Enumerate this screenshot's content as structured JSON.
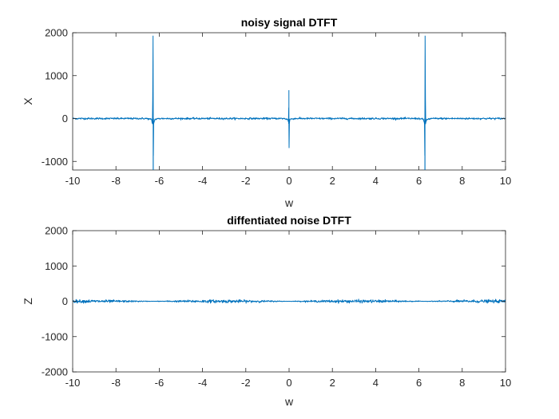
{
  "chart_data": [
    {
      "type": "line",
      "title": "noisy signal DTFT",
      "xlabel": "w",
      "ylabel": "X",
      "xlim": [
        -10,
        10
      ],
      "ylim": [
        -1200,
        2000
      ],
      "xticks": [
        "-10",
        "-8",
        "-6",
        "-4",
        "-2",
        "0",
        "2",
        "4",
        "6",
        "8",
        "10"
      ],
      "yticks": [
        "-1000",
        "0",
        "1000",
        "2000"
      ],
      "grid": false,
      "color": "#0072BD",
      "noise_amplitude": 20,
      "series": [
        {
          "x": [
            -10,
            -6.6,
            -6.36,
            -6.31,
            -6.295,
            -6.285,
            -6.28,
            -6.275,
            -6.265,
            -6.24,
            -6.2,
            -6.0,
            -0.25,
            -0.05,
            -0.02,
            -0.008,
            0,
            0.004,
            0.02,
            0.05,
            0.25,
            6.0,
            6.2,
            6.24,
            6.265,
            6.275,
            6.28,
            6.285,
            6.295,
            6.31,
            6.36,
            6.6,
            10
          ],
          "y": [
            0,
            0,
            -20,
            -130,
            750,
            1930,
            -1250,
            -1250,
            -150,
            -80,
            -20,
            0,
            0,
            -20,
            -120,
            660,
            -680,
            -200,
            -60,
            -15,
            0,
            0,
            -20,
            -80,
            -150,
            -1250,
            -1250,
            1930,
            750,
            -130,
            -20,
            0,
            0
          ]
        }
      ]
    },
    {
      "type": "line",
      "title": "diffentiated noise DTFT",
      "xlabel": "w",
      "ylabel": "Z",
      "xlim": [
        -10,
        10
      ],
      "ylim": [
        -2000,
        2000
      ],
      "xticks": [
        "-10",
        "-8",
        "-6",
        "-4",
        "-2",
        "0",
        "2",
        "4",
        "6",
        "8",
        "10"
      ],
      "yticks": [
        "-2000",
        "-1000",
        "0",
        "1000",
        "2000"
      ],
      "grid": false,
      "color": "#0072BD",
      "noise_amplitude": 40,
      "series": [
        {
          "x": [
            -10,
            -9,
            -8,
            -7,
            -6.28,
            -5.5,
            -4.5,
            -3.8,
            -3,
            -2,
            -1,
            0,
            1,
            2,
            3,
            3.8,
            4.5,
            5.5,
            6.28,
            7,
            8,
            9,
            10
          ],
          "y": [
            0,
            0,
            0,
            0,
            0,
            0,
            0,
            0,
            0,
            0,
            0,
            0,
            0,
            0,
            0,
            0,
            0,
            0,
            0,
            0,
            0,
            0,
            0
          ]
        }
      ]
    }
  ]
}
